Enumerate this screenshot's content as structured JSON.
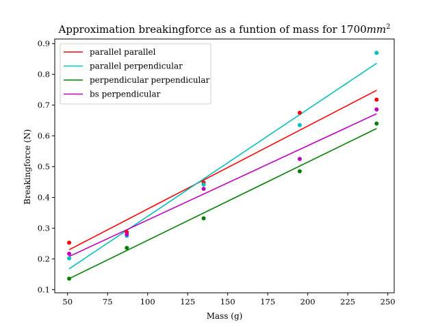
{
  "chart_data": {
    "type": "scatter",
    "title_main": "Approximation breakingforce as a funtion of mass for 1700",
    "title_unit_base": "mm",
    "title_unit_exp": "2",
    "xlabel": "Mass (g)",
    "ylabel": "Breakingforce (N)",
    "xlim": [
      42,
      254
    ],
    "ylim": [
      0.09,
      0.915
    ],
    "xticks": [
      50,
      75,
      100,
      125,
      150,
      175,
      200,
      225,
      250
    ],
    "yticks": [
      0.1,
      0.2,
      0.3,
      0.4,
      0.5,
      0.6,
      0.7,
      0.8,
      0.9
    ],
    "grid": false,
    "legend_position": "top-left",
    "series": [
      {
        "name": "parallel parallel",
        "color": "#ff0000",
        "points": [
          [
            51,
            0.253
          ],
          [
            87,
            0.287
          ],
          [
            135,
            0.448
          ],
          [
            195,
            0.675
          ],
          [
            243,
            0.718
          ]
        ],
        "fit_line": [
          [
            51,
            0.23
          ],
          [
            243,
            0.748
          ]
        ]
      },
      {
        "name": "parallel perpendicular",
        "color": "#00bfbf",
        "points": [
          [
            51,
            0.202
          ],
          [
            87,
            0.275
          ],
          [
            135,
            0.442
          ],
          [
            195,
            0.635
          ],
          [
            243,
            0.87
          ]
        ],
        "fit_line": [
          [
            51,
            0.168
          ],
          [
            243,
            0.836
          ]
        ]
      },
      {
        "name": "perpendicular perpendicular",
        "color": "#008000",
        "points": [
          [
            51,
            0.136
          ],
          [
            87,
            0.236
          ],
          [
            135,
            0.332
          ],
          [
            195,
            0.485
          ],
          [
            243,
            0.64
          ]
        ],
        "fit_line": [
          [
            51,
            0.136
          ],
          [
            243,
            0.624
          ]
        ]
      },
      {
        "name": "bs perpendicular",
        "color": "#bf00bf",
        "points": [
          [
            51,
            0.217
          ],
          [
            87,
            0.28
          ],
          [
            135,
            0.428
          ],
          [
            195,
            0.525
          ],
          [
            243,
            0.686
          ]
        ],
        "fit_line": [
          [
            51,
            0.208
          ],
          [
            243,
            0.672
          ]
        ]
      }
    ]
  }
}
